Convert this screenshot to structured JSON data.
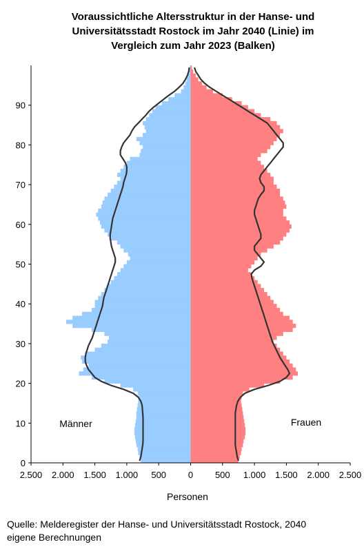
{
  "title_lines": [
    "Voraussichtliche Altersstruktur in der Hanse- und",
    "Universitätsstadt Rostock im Jahr 2040 (Linie) im",
    "Vergleich zum Jahr 2023 (Balken)"
  ],
  "source_lines": [
    "Quelle: Melderegister der Hanse- und Universitätsstadt Rostock, 2040",
    "eigene Berechnungen"
  ],
  "colors": {
    "male_bar": "#99ccff",
    "female_bar": "#ff8080",
    "line": "#333333"
  },
  "chart_data": {
    "type": "bar",
    "orientation": "horizontal-population-pyramid",
    "title": "Voraussichtliche Altersstruktur in der Hanse- und Universitätsstadt Rostock im Jahr 2040 (Linie) im Vergleich zum Jahr 2023 (Balken)",
    "xlabel": "Personen",
    "ylabel": "",
    "xlim": [
      -2500,
      2500
    ],
    "ylim": [
      0,
      99
    ],
    "x_ticks": [
      -2500,
      -2000,
      -1500,
      -1000,
      -500,
      0,
      500,
      1000,
      1500,
      2000,
      2500
    ],
    "x_tick_labels": [
      "2.500",
      "2.000",
      "1.500",
      "1.000",
      "500",
      "0",
      "500",
      "1.000",
      "1.500",
      "2.000",
      "2.500"
    ],
    "y_ticks": [
      0,
      10,
      20,
      30,
      40,
      50,
      60,
      70,
      80,
      90
    ],
    "y_tick_labels": [
      "0",
      "10",
      "20",
      "30",
      "40",
      "50",
      "60",
      "70",
      "80",
      "90"
    ],
    "male_label": "Männer",
    "female_label": "Frauen",
    "ages": [
      0,
      1,
      2,
      3,
      4,
      5,
      6,
      7,
      8,
      9,
      10,
      11,
      12,
      13,
      14,
      15,
      16,
      17,
      18,
      19,
      20,
      21,
      22,
      23,
      24,
      25,
      26,
      27,
      28,
      29,
      30,
      31,
      32,
      33,
      34,
      35,
      36,
      37,
      38,
      39,
      40,
      41,
      42,
      43,
      44,
      45,
      46,
      47,
      48,
      49,
      50,
      51,
      52,
      53,
      54,
      55,
      56,
      57,
      58,
      59,
      60,
      61,
      62,
      63,
      64,
      65,
      66,
      67,
      68,
      69,
      70,
      71,
      72,
      73,
      74,
      75,
      76,
      77,
      78,
      79,
      80,
      81,
      82,
      83,
      84,
      85,
      86,
      87,
      88,
      89,
      90,
      91,
      92,
      93,
      94,
      95,
      96,
      97,
      98,
      99
    ],
    "series": [
      {
        "name": "Männer",
        "kind": "bar-2023",
        "values": [
          780,
          800,
          820,
          830,
          850,
          860,
          870,
          880,
          880,
          870,
          860,
          850,
          850,
          840,
          830,
          820,
          810,
          830,
          900,
          1100,
          1350,
          1550,
          1750,
          1680,
          1600,
          1700,
          1720,
          1650,
          1500,
          1400,
          1300,
          1280,
          1350,
          1550,
          1850,
          1950,
          1850,
          1700,
          1550,
          1500,
          1500,
          1450,
          1400,
          1350,
          1300,
          1250,
          1200,
          1150,
          1100,
          1050,
          1000,
          950,
          980,
          1050,
          1100,
          1150,
          1250,
          1300,
          1350,
          1400,
          1420,
          1450,
          1480,
          1450,
          1400,
          1380,
          1350,
          1300,
          1250,
          1200,
          1150,
          1100,
          1150,
          1100,
          1050,
          1000,
          950,
          800,
          780,
          750,
          800,
          850,
          750,
          700,
          720,
          750,
          700,
          650,
          600,
          550,
          450,
          350,
          250,
          150,
          110,
          80,
          60,
          40,
          20,
          10
        ]
      },
      {
        "name": "Frauen",
        "kind": "bar-2023",
        "values": [
          750,
          770,
          790,
          800,
          820,
          830,
          850,
          860,
          860,
          850,
          840,
          830,
          820,
          810,
          800,
          790,
          800,
          820,
          920,
          1150,
          1400,
          1600,
          1680,
          1650,
          1600,
          1550,
          1500,
          1450,
          1400,
          1350,
          1300,
          1350,
          1450,
          1600,
          1650,
          1600,
          1550,
          1450,
          1400,
          1350,
          1300,
          1250,
          1200,
          1150,
          1100,
          1050,
          1000,
          950,
          900,
          950,
          1000,
          1050,
          1100,
          1200,
          1300,
          1400,
          1450,
          1500,
          1550,
          1580,
          1550,
          1500,
          1450,
          1450,
          1500,
          1480,
          1450,
          1400,
          1400,
          1350,
          1300,
          1300,
          1250,
          1200,
          1150,
          1100,
          1050,
          1100,
          1200,
          1250,
          1300,
          1350,
          1400,
          1450,
          1400,
          1350,
          1250,
          1100,
          1000,
          900,
          800,
          650,
          500,
          350,
          250,
          180,
          120,
          80,
          40,
          20
        ]
      },
      {
        "name": "Männer",
        "kind": "line-2040",
        "values": [
          800,
          780,
          770,
          760,
          750,
          745,
          745,
          745,
          745,
          745,
          745,
          745,
          750,
          755,
          760,
          780,
          820,
          900,
          1050,
          1250,
          1400,
          1500,
          1550,
          1600,
          1630,
          1650,
          1650,
          1640,
          1620,
          1600,
          1570,
          1540,
          1520,
          1500,
          1480,
          1460,
          1440,
          1420,
          1400,
          1380,
          1370,
          1360,
          1340,
          1320,
          1300,
          1280,
          1260,
          1240,
          1220,
          1200,
          1180,
          1180,
          1200,
          1220,
          1240,
          1250,
          1260,
          1260,
          1250,
          1240,
          1230,
          1220,
          1200,
          1180,
          1160,
          1140,
          1120,
          1100,
          1080,
          1060,
          1050,
          1030,
          1010,
          1000,
          1000,
          1020,
          1060,
          1100,
          1100,
          1080,
          1050,
          1000,
          950,
          920,
          880,
          820,
          760,
          700,
          650,
          580,
          500,
          420,
          340,
          250,
          180,
          120,
          80,
          50,
          30,
          20
        ]
      },
      {
        "name": "Frauen",
        "kind": "line-2040",
        "values": [
          750,
          730,
          720,
          710,
          700,
          700,
          700,
          700,
          700,
          700,
          700,
          700,
          700,
          710,
          720,
          740,
          780,
          850,
          1000,
          1220,
          1400,
          1500,
          1550,
          1520,
          1480,
          1440,
          1400,
          1370,
          1340,
          1310,
          1280,
          1260,
          1240,
          1220,
          1200,
          1180,
          1160,
          1140,
          1120,
          1100,
          1080,
          1060,
          1040,
          1020,
          1000,
          980,
          960,
          950,
          1000,
          1100,
          1150,
          1100,
          1050,
          1000,
          1000,
          1050,
          1100,
          1100,
          1080,
          1060,
          1040,
          1020,
          1000,
          1000,
          1020,
          1040,
          1060,
          1100,
          1150,
          1150,
          1100,
          1080,
          1100,
          1150,
          1200,
          1250,
          1300,
          1350,
          1400,
          1450,
          1450,
          1400,
          1350,
          1300,
          1250,
          1200,
          1100,
          1000,
          900,
          800,
          700,
          600,
          500,
          400,
          300,
          220,
          160,
          120,
          80,
          60
        ]
      }
    ]
  }
}
